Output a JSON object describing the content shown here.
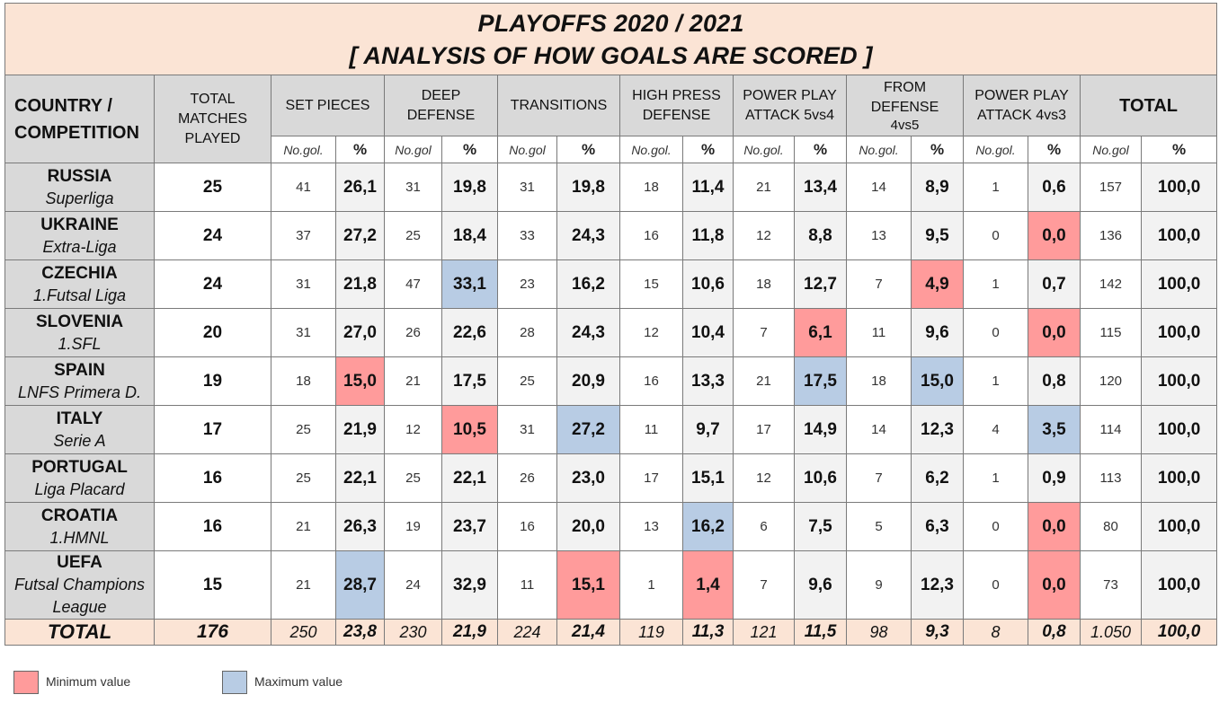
{
  "title_line1": "PLAYOFFS 2020 / 2021",
  "title_line2": "[ ANALYSIS OF HOW GOALS ARE SCORED ]",
  "headers": {
    "country_line1": "COUNTRY /",
    "country_line2": "COMPETITION",
    "matches_line1": "TOTAL",
    "matches_line2": "MATCHES",
    "matches_line3": "PLAYED",
    "categories": [
      {
        "line1": "SET PIECES",
        "line2": ""
      },
      {
        "line1": "DEEP",
        "line2": "DEFENSE"
      },
      {
        "line1": "TRANSITIONS",
        "line2": ""
      },
      {
        "line1": "HIGH PRESS",
        "line2": "DEFENSE"
      },
      {
        "line1": "POWER PLAY",
        "line2": "ATTACK 5vs4"
      },
      {
        "line1": "FROM",
        "line2": "DEFENSE",
        "line3": "4vs5"
      },
      {
        "line1": "POWER PLAY",
        "line2": "ATTACK 4vs3"
      }
    ],
    "total": "TOTAL",
    "sub_headers": [
      {
        "no": "No.gol.",
        "pct": "%"
      },
      {
        "no": "No.gol",
        "pct": "%"
      },
      {
        "no": "No.gol",
        "pct": "%"
      },
      {
        "no": "No.gol.",
        "pct": "%"
      },
      {
        "no": "No.gol.",
        "pct": "%"
      },
      {
        "no": "No.gol.",
        "pct": "%"
      },
      {
        "no": "No.gol.",
        "pct": "%"
      },
      {
        "no": "No.gol",
        "pct": "%"
      }
    ]
  },
  "rows": [
    {
      "country": "RUSSIA",
      "competition": "Superliga",
      "matches": "25",
      "cells": [
        [
          "41",
          "26,1",
          ""
        ],
        [
          "31",
          "19,8",
          ""
        ],
        [
          "31",
          "19,8",
          ""
        ],
        [
          "18",
          "11,4",
          ""
        ],
        [
          "21",
          "13,4",
          ""
        ],
        [
          "14",
          "8,9",
          ""
        ],
        [
          "1",
          "0,6",
          ""
        ],
        [
          "157",
          "100,0",
          ""
        ]
      ]
    },
    {
      "country": "UKRAINE",
      "competition": "Extra-Liga",
      "matches": "24",
      "cells": [
        [
          "37",
          "27,2",
          ""
        ],
        [
          "25",
          "18,4",
          ""
        ],
        [
          "33",
          "24,3",
          ""
        ],
        [
          "16",
          "11,8",
          ""
        ],
        [
          "12",
          "8,8",
          ""
        ],
        [
          "13",
          "9,5",
          ""
        ],
        [
          "0",
          "0,0",
          "min"
        ],
        [
          "136",
          "100,0",
          ""
        ]
      ]
    },
    {
      "country": "CZECHIA",
      "competition": "1.Futsal Liga",
      "matches": "24",
      "cells": [
        [
          "31",
          "21,8",
          ""
        ],
        [
          "47",
          "33,1",
          "max"
        ],
        [
          "23",
          "16,2",
          ""
        ],
        [
          "15",
          "10,6",
          ""
        ],
        [
          "18",
          "12,7",
          ""
        ],
        [
          "7",
          "4,9",
          "min"
        ],
        [
          "1",
          "0,7",
          ""
        ],
        [
          "142",
          "100,0",
          ""
        ]
      ]
    },
    {
      "country": "SLOVENIA",
      "competition": "1.SFL",
      "matches": "20",
      "cells": [
        [
          "31",
          "27,0",
          ""
        ],
        [
          "26",
          "22,6",
          ""
        ],
        [
          "28",
          "24,3",
          ""
        ],
        [
          "12",
          "10,4",
          ""
        ],
        [
          "7",
          "6,1",
          "min"
        ],
        [
          "11",
          "9,6",
          ""
        ],
        [
          "0",
          "0,0",
          "min"
        ],
        [
          "115",
          "100,0",
          ""
        ]
      ]
    },
    {
      "country": "SPAIN",
      "competition": "LNFS Primera D.",
      "matches": "19",
      "cells": [
        [
          "18",
          "15,0",
          "min"
        ],
        [
          "21",
          "17,5",
          ""
        ],
        [
          "25",
          "20,9",
          ""
        ],
        [
          "16",
          "13,3",
          ""
        ],
        [
          "21",
          "17,5",
          "max"
        ],
        [
          "18",
          "15,0",
          "max"
        ],
        [
          "1",
          "0,8",
          ""
        ],
        [
          "120",
          "100,0",
          ""
        ]
      ]
    },
    {
      "country": "ITALY",
      "competition": "Serie A",
      "matches": "17",
      "cells": [
        [
          "25",
          "21,9",
          ""
        ],
        [
          "12",
          "10,5",
          "min"
        ],
        [
          "31",
          "27,2",
          "max"
        ],
        [
          "11",
          "9,7",
          ""
        ],
        [
          "17",
          "14,9",
          ""
        ],
        [
          "14",
          "12,3",
          ""
        ],
        [
          "4",
          "3,5",
          "max"
        ],
        [
          "114",
          "100,0",
          ""
        ]
      ]
    },
    {
      "country": "PORTUGAL",
      "competition": "Liga Placard",
      "matches": "16",
      "cells": [
        [
          "25",
          "22,1",
          ""
        ],
        [
          "25",
          "22,1",
          ""
        ],
        [
          "26",
          "23,0",
          ""
        ],
        [
          "17",
          "15,1",
          ""
        ],
        [
          "12",
          "10,6",
          ""
        ],
        [
          "7",
          "6,2",
          ""
        ],
        [
          "1",
          "0,9",
          ""
        ],
        [
          "113",
          "100,0",
          ""
        ]
      ]
    },
    {
      "country": "CROATIA",
      "competition": "1.HMNL",
      "matches": "16",
      "cells": [
        [
          "21",
          "26,3",
          ""
        ],
        [
          "19",
          "23,7",
          ""
        ],
        [
          "16",
          "20,0",
          ""
        ],
        [
          "13",
          "16,2",
          "max"
        ],
        [
          "6",
          "7,5",
          ""
        ],
        [
          "5",
          "6,3",
          ""
        ],
        [
          "0",
          "0,0",
          "min"
        ],
        [
          "80",
          "100,0",
          ""
        ]
      ]
    },
    {
      "country": "UEFA",
      "competition": "Futsal Champions",
      "competition2": "League",
      "matches": "15",
      "cells": [
        [
          "21",
          "28,7",
          "max"
        ],
        [
          "24",
          "32,9",
          ""
        ],
        [
          "11",
          "15,1",
          "min"
        ],
        [
          "1",
          "1,4",
          "min"
        ],
        [
          "7",
          "9,6",
          ""
        ],
        [
          "9",
          "12,3",
          ""
        ],
        [
          "0",
          "0,0",
          "min"
        ],
        [
          "73",
          "100,0",
          ""
        ]
      ]
    }
  ],
  "totals": {
    "label": "TOTAL",
    "matches": "176",
    "cells": [
      [
        "250",
        "23,8"
      ],
      [
        "230",
        "21,9"
      ],
      [
        "224",
        "21,4"
      ],
      [
        "119",
        "11,3"
      ],
      [
        "121",
        "11,5"
      ],
      [
        "98",
        "9,3"
      ],
      [
        "8",
        "0,8"
      ],
      [
        "1.050",
        "100,0"
      ]
    ]
  },
  "legend": {
    "min_label": "Minimum value",
    "max_label": "Maximum value",
    "min_color": "#ff9b9b",
    "max_color": "#b8cce4"
  }
}
